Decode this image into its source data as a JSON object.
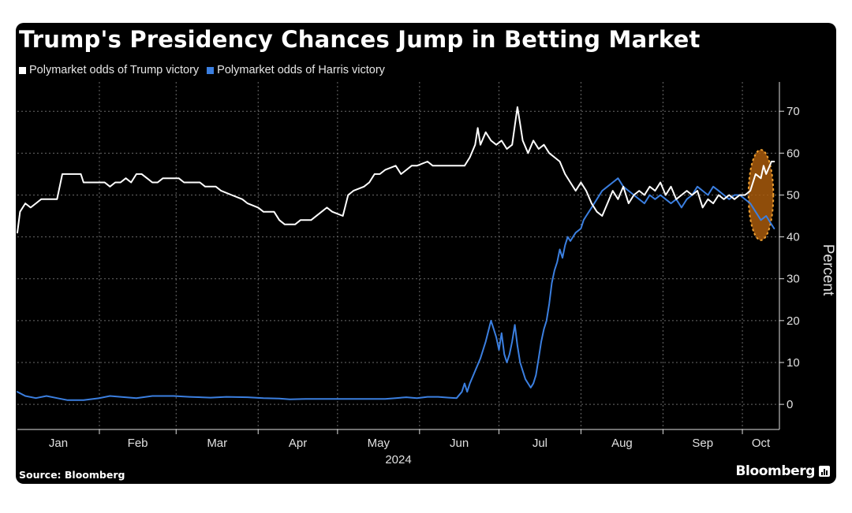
{
  "title": "Trump's Presidency Chances Jump in Betting Market",
  "source": "Source: Bloomberg",
  "brand": "Bloomberg",
  "brand_icon": "bloomberg-chart-icon",
  "colors": {
    "background": "#000000",
    "trump": "#ffffff",
    "harris": "#3b7fe0",
    "highlight_fill": "#a85a0c",
    "highlight_stroke": "#f0a030",
    "grid": "#6a6a6a",
    "axis_text": "#e0e0e0"
  },
  "chart_data": {
    "type": "line",
    "xlabel": "2024",
    "ylabel": "Percent",
    "ylim": [
      -6,
      77
    ],
    "xlim": [
      1,
      289
    ],
    "yticks": [
      0,
      10,
      20,
      30,
      40,
      50,
      60,
      70
    ],
    "x_unit": "day of year 2024",
    "months": [
      {
        "label": "Jan",
        "start": 1,
        "end": 32
      },
      {
        "label": "Feb",
        "start": 32,
        "end": 61
      },
      {
        "label": "Mar",
        "start": 61,
        "end": 92
      },
      {
        "label": "Apr",
        "start": 92,
        "end": 122
      },
      {
        "label": "May",
        "start": 122,
        "end": 153
      },
      {
        "label": "Jun",
        "start": 153,
        "end": 183
      },
      {
        "label": "Jul",
        "start": 183,
        "end": 214
      },
      {
        "label": "Aug",
        "start": 214,
        "end": 245
      },
      {
        "label": "Sep",
        "start": 245,
        "end": 275
      },
      {
        "label": "Oct",
        "start": 275,
        "end": 289
      }
    ],
    "grid": true,
    "legend_position": "top-left",
    "series": [
      {
        "name": "Polymarket odds of Trump victory",
        "color": "#ffffff",
        "points": [
          [
            1,
            41
          ],
          [
            2,
            46
          ],
          [
            4,
            48
          ],
          [
            6,
            47
          ],
          [
            8,
            48
          ],
          [
            10,
            49
          ],
          [
            16,
            49
          ],
          [
            18,
            55
          ],
          [
            25,
            55
          ],
          [
            26,
            53
          ],
          [
            34,
            53
          ],
          [
            36,
            52
          ],
          [
            38,
            53
          ],
          [
            40,
            53
          ],
          [
            42,
            54
          ],
          [
            44,
            53
          ],
          [
            46,
            55
          ],
          [
            48,
            55
          ],
          [
            50,
            54
          ],
          [
            52,
            53
          ],
          [
            54,
            53
          ],
          [
            56,
            54
          ],
          [
            62,
            54
          ],
          [
            64,
            53
          ],
          [
            70,
            53
          ],
          [
            72,
            52
          ],
          [
            76,
            52
          ],
          [
            78,
            51
          ],
          [
            82,
            50
          ],
          [
            86,
            49
          ],
          [
            88,
            48
          ],
          [
            92,
            47
          ],
          [
            94,
            46
          ],
          [
            98,
            46
          ],
          [
            100,
            44
          ],
          [
            102,
            43
          ],
          [
            106,
            43
          ],
          [
            108,
            44
          ],
          [
            112,
            44
          ],
          [
            116,
            46
          ],
          [
            118,
            47
          ],
          [
            120,
            46
          ],
          [
            124,
            45
          ],
          [
            126,
            50
          ],
          [
            128,
            51
          ],
          [
            132,
            52
          ],
          [
            134,
            53
          ],
          [
            136,
            55
          ],
          [
            138,
            55
          ],
          [
            140,
            56
          ],
          [
            144,
            57
          ],
          [
            146,
            55
          ],
          [
            150,
            57
          ],
          [
            152,
            57
          ],
          [
            156,
            58
          ],
          [
            158,
            57
          ],
          [
            162,
            57
          ],
          [
            166,
            57
          ],
          [
            170,
            57
          ],
          [
            172,
            59
          ],
          [
            174,
            62
          ],
          [
            175,
            66
          ],
          [
            176,
            62
          ],
          [
            178,
            65
          ],
          [
            180,
            63
          ],
          [
            182,
            62
          ],
          [
            184,
            63
          ],
          [
            186,
            61
          ],
          [
            188,
            62
          ],
          [
            190,
            71
          ],
          [
            191,
            67
          ],
          [
            192,
            63
          ],
          [
            194,
            60
          ],
          [
            196,
            63
          ],
          [
            198,
            61
          ],
          [
            200,
            62
          ],
          [
            202,
            60
          ],
          [
            204,
            59
          ],
          [
            206,
            58
          ],
          [
            208,
            55
          ],
          [
            210,
            53
          ],
          [
            212,
            51
          ],
          [
            214,
            53
          ],
          [
            216,
            51
          ],
          [
            218,
            48
          ],
          [
            220,
            46
          ],
          [
            222,
            45
          ],
          [
            224,
            48
          ],
          [
            226,
            51
          ],
          [
            228,
            49
          ],
          [
            230,
            52
          ],
          [
            232,
            48
          ],
          [
            234,
            50
          ],
          [
            236,
            51
          ],
          [
            238,
            50
          ],
          [
            240,
            52
          ],
          [
            242,
            51
          ],
          [
            244,
            53
          ],
          [
            246,
            50
          ],
          [
            248,
            52
          ],
          [
            250,
            49
          ],
          [
            252,
            50
          ],
          [
            254,
            51
          ],
          [
            256,
            50
          ],
          [
            258,
            51
          ],
          [
            260,
            47
          ],
          [
            262,
            49
          ],
          [
            264,
            48
          ],
          [
            266,
            50
          ],
          [
            268,
            49
          ],
          [
            270,
            50
          ],
          [
            272,
            49
          ],
          [
            274,
            50
          ],
          [
            276,
            50
          ],
          [
            278,
            51
          ],
          [
            280,
            55
          ],
          [
            282,
            54
          ],
          [
            283,
            57
          ],
          [
            284,
            55
          ],
          [
            286,
            58
          ],
          [
            287,
            58
          ]
        ]
      },
      {
        "name": "Polymarket odds of Harris victory",
        "color": "#3b7fe0",
        "points": [
          [
            1,
            3
          ],
          [
            4,
            2
          ],
          [
            8,
            1.5
          ],
          [
            12,
            2
          ],
          [
            16,
            1.5
          ],
          [
            20,
            1
          ],
          [
            26,
            1
          ],
          [
            32,
            1.5
          ],
          [
            36,
            2
          ],
          [
            40,
            1.8
          ],
          [
            46,
            1.5
          ],
          [
            52,
            2
          ],
          [
            60,
            2
          ],
          [
            66,
            1.8
          ],
          [
            74,
            1.6
          ],
          [
            80,
            1.8
          ],
          [
            88,
            1.7
          ],
          [
            94,
            1.5
          ],
          [
            100,
            1.4
          ],
          [
            104,
            1.2
          ],
          [
            110,
            1.3
          ],
          [
            118,
            1.3
          ],
          [
            126,
            1.3
          ],
          [
            134,
            1.3
          ],
          [
            140,
            1.3
          ],
          [
            144,
            1.5
          ],
          [
            148,
            1.7
          ],
          [
            152,
            1.5
          ],
          [
            156,
            1.8
          ],
          [
            160,
            1.8
          ],
          [
            164,
            1.6
          ],
          [
            167,
            1.5
          ],
          [
            169,
            3
          ],
          [
            170,
            5
          ],
          [
            171,
            3
          ],
          [
            172,
            5
          ],
          [
            174,
            8
          ],
          [
            176,
            11
          ],
          [
            178,
            15
          ],
          [
            180,
            20
          ],
          [
            181,
            18
          ],
          [
            182,
            16
          ],
          [
            183,
            13
          ],
          [
            184,
            17
          ],
          [
            185,
            12
          ],
          [
            186,
            10
          ],
          [
            187,
            12
          ],
          [
            188,
            15
          ],
          [
            189,
            19
          ],
          [
            190,
            14
          ],
          [
            191,
            10
          ],
          [
            192,
            8
          ],
          [
            193,
            6
          ],
          [
            194,
            5
          ],
          [
            195,
            4
          ],
          [
            196,
            5
          ],
          [
            197,
            7
          ],
          [
            198,
            11
          ],
          [
            199,
            15
          ],
          [
            200,
            18
          ],
          [
            201,
            20
          ],
          [
            202,
            24
          ],
          [
            203,
            29
          ],
          [
            204,
            32
          ],
          [
            205,
            34
          ],
          [
            206,
            37
          ],
          [
            207,
            35
          ],
          [
            208,
            38
          ],
          [
            209,
            40
          ],
          [
            210,
            39
          ],
          [
            212,
            41
          ],
          [
            214,
            42
          ],
          [
            215,
            44
          ],
          [
            216,
            45
          ],
          [
            218,
            47
          ],
          [
            220,
            49
          ],
          [
            222,
            51
          ],
          [
            224,
            52
          ],
          [
            226,
            53
          ],
          [
            228,
            54
          ],
          [
            230,
            52
          ],
          [
            232,
            51
          ],
          [
            234,
            50
          ],
          [
            236,
            49
          ],
          [
            238,
            48
          ],
          [
            240,
            50
          ],
          [
            242,
            49
          ],
          [
            244,
            50
          ],
          [
            246,
            49
          ],
          [
            248,
            48
          ],
          [
            250,
            49
          ],
          [
            252,
            47
          ],
          [
            254,
            49
          ],
          [
            256,
            50
          ],
          [
            258,
            52
          ],
          [
            260,
            51
          ],
          [
            262,
            50
          ],
          [
            264,
            52
          ],
          [
            266,
            51
          ],
          [
            268,
            50
          ],
          [
            270,
            49
          ],
          [
            272,
            50
          ],
          [
            274,
            50
          ],
          [
            276,
            49
          ],
          [
            278,
            48
          ],
          [
            280,
            46
          ],
          [
            282,
            44
          ],
          [
            284,
            45
          ],
          [
            286,
            43
          ],
          [
            287,
            42
          ]
        ]
      }
    ],
    "annotation": {
      "shape": "ellipse",
      "x_center": 282,
      "x_halfwidth": 4.7,
      "y_center": 50,
      "y_halfheight": 10.8
    }
  }
}
